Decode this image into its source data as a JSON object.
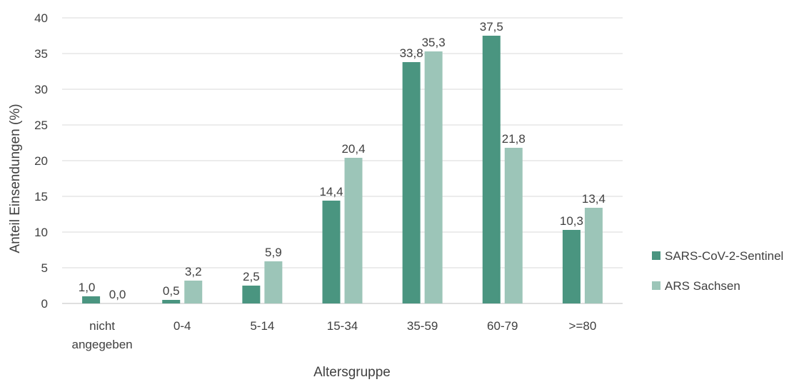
{
  "chart_data": {
    "type": "bar",
    "title": "",
    "xlabel": "Altersgruppe",
    "ylabel": "Anteil Einsendungen (%)",
    "ylim": [
      0,
      40
    ],
    "yticks": [
      0,
      5,
      10,
      15,
      20,
      25,
      30,
      35,
      40
    ],
    "grid": "horizontal",
    "legend": "right",
    "categories": [
      [
        "nicht",
        "angegeben"
      ],
      [
        "0-4"
      ],
      [
        "5-14"
      ],
      [
        "15-34"
      ],
      [
        "35-59"
      ],
      [
        "60-79"
      ],
      [
        ">=80"
      ]
    ],
    "series": [
      {
        "name": "SARS-CoV-2-Sentinel",
        "color": "#4a9580",
        "values": [
          1.0,
          0.5,
          2.5,
          14.4,
          33.8,
          37.5,
          10.3
        ],
        "labels": [
          "1,0",
          "0,5",
          "2,5",
          "14,4",
          "33,8",
          "37,5",
          "10,3"
        ]
      },
      {
        "name": "ARS Sachsen",
        "color": "#9cc5b8",
        "values": [
          0.0,
          3.2,
          5.9,
          20.4,
          35.3,
          21.8,
          13.4
        ],
        "labels": [
          "0,0",
          "3,2",
          "5,9",
          "20,4",
          "35,3",
          "21,8",
          "13,4"
        ]
      }
    ]
  }
}
